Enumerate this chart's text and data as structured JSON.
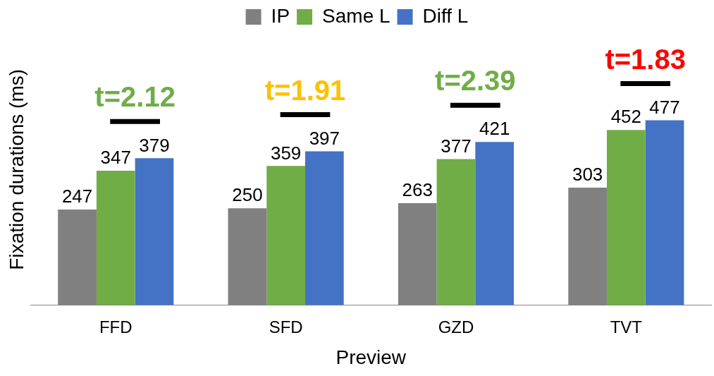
{
  "chart_data": {
    "type": "bar",
    "xlabel": "Preview",
    "ylabel": "Fixation durations (ms)",
    "categories": [
      "FFD",
      "SFD",
      "GZD",
      "TVT"
    ],
    "series": [
      {
        "name": "IP",
        "color": "#808080",
        "values": [
          247,
          250,
          263,
          303
        ]
      },
      {
        "name": "Same L",
        "color": "#70ad47",
        "values": [
          347,
          359,
          377,
          452
        ]
      },
      {
        "name": "Diff L",
        "color": "#4472c4",
        "values": [
          379,
          397,
          421,
          477
        ]
      }
    ],
    "annotations": [
      "t=2.12",
      "t=1.91",
      "t=2.39",
      "t=1.83"
    ],
    "data_labels": true,
    "legend": "top",
    "grid": false,
    "tick_labels": "x"
  }
}
